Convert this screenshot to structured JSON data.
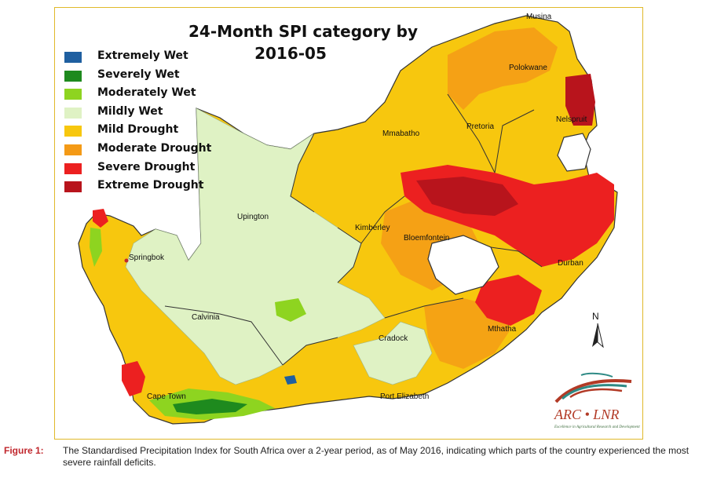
{
  "map": {
    "title_line1": "24-Month SPI category by",
    "title_line2": "2016-05",
    "legend": [
      {
        "label": "Extremely Wet",
        "color": "#1f5fa0"
      },
      {
        "label": "Severely Wet",
        "color": "#1e8a1e"
      },
      {
        "label": "Moderately Wet",
        "color": "#8ed420"
      },
      {
        "label": "Mildly Wet",
        "color": "#dff2c4"
      },
      {
        "label": "Mild Drought",
        "color": "#f7c70e"
      },
      {
        "label": "Moderate Drought",
        "color": "#f49a16"
      },
      {
        "label": "Severe Drought",
        "color": "#ec2020"
      },
      {
        "label": "Extreme Drought",
        "color": "#b8141c"
      }
    ],
    "cities": {
      "musina": "Musina",
      "polokwane": "Polokwane",
      "nelspruit": "Nelspruit",
      "pretoria": "Pretoria",
      "mmabatho": "Mmabatho",
      "upington": "Upington",
      "kimberley": "Kimberley",
      "bloemfontein": "Bloemfontein",
      "durban": "Durban",
      "springbok": "Springbok",
      "calvinia": "Calvinia",
      "cradock": "Cradock",
      "mthatha": "Mthatha",
      "cape_town": "Cape Town",
      "port_elizabeth": "Port Elizabeth"
    },
    "north_label": "N",
    "logo": {
      "name": "ARC • LNR",
      "tagline": "Excellence in Agricultural Research and Development"
    }
  },
  "caption": {
    "label": "Figure 1:",
    "text": "The Standardised Precipitation Index for South Africa over a 2-year period, as of May 2016, indicating which parts of the country experienced the most severe rainfall deficits."
  }
}
